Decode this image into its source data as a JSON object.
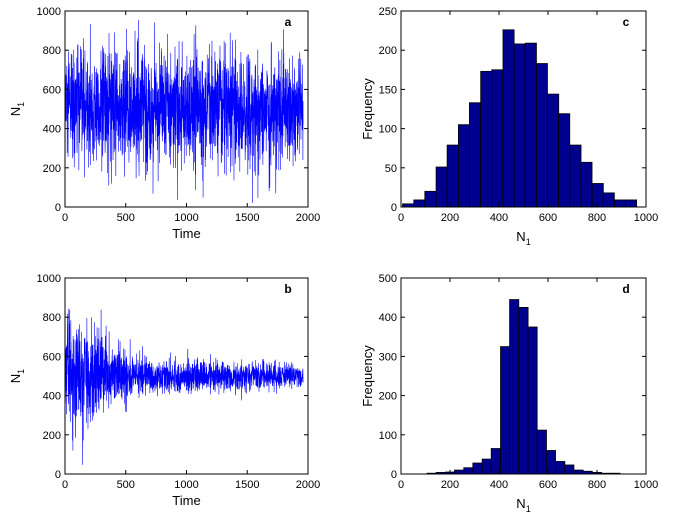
{
  "chart_data": [
    {
      "id": "a",
      "type": "line",
      "panel_label": "a",
      "xlabel": "Time",
      "ylabel": "N",
      "ylabel_sub": "1",
      "xlim": [
        0,
        2000
      ],
      "ylim": [
        0,
        1000
      ],
      "xticks": [
        0,
        500,
        1000,
        1500,
        2000
      ],
      "yticks": [
        0,
        200,
        400,
        600,
        800,
        1000
      ],
      "color": "#0000ff",
      "series": [
        {
          "x_range": [
            0,
            1960
          ],
          "mean": 500,
          "n_points": 1960,
          "amplitude_profile": [
            {
              "t": 0,
              "std": 150
            },
            {
              "t": 1960,
              "std": 150
            }
          ]
        }
      ]
    },
    {
      "id": "b",
      "type": "line",
      "panel_label": "b",
      "xlabel": "Time",
      "ylabel": "N",
      "ylabel_sub": "1",
      "xlim": [
        0,
        2000
      ],
      "ylim": [
        0,
        1000
      ],
      "xticks": [
        0,
        500,
        1000,
        1500,
        2000
      ],
      "yticks": [
        0,
        200,
        400,
        600,
        800,
        1000
      ],
      "color": "#0000ff",
      "series": [
        {
          "x_range": [
            0,
            1960
          ],
          "mean": 500,
          "n_points": 1960,
          "amplitude_profile": [
            {
              "t": 0,
              "std": 130
            },
            {
              "t": 150,
              "std": 140
            },
            {
              "t": 400,
              "std": 75
            },
            {
              "t": 700,
              "std": 45
            },
            {
              "t": 1960,
              "std": 30
            }
          ]
        }
      ]
    },
    {
      "id": "c",
      "type": "bar",
      "panel_label": "c",
      "xlabel": "N",
      "xlabel_sub": "1",
      "ylabel": "Frequency",
      "xlim": [
        0,
        1000
      ],
      "ylim": [
        0,
        250
      ],
      "xticks": [
        0,
        200,
        400,
        600,
        800,
        1000
      ],
      "yticks": [
        0,
        50,
        100,
        150,
        200,
        250
      ],
      "bar_color": "#00008f",
      "bin_width": 45.5,
      "bin_centers": [
        29,
        75,
        120,
        166,
        211,
        257,
        302,
        348,
        393,
        439,
        484,
        530,
        575,
        621,
        666,
        712,
        757,
        803,
        848,
        894,
        939
      ],
      "values": [
        4,
        9,
        20,
        51,
        79,
        105,
        133,
        173,
        175,
        226,
        208,
        209,
        183,
        144,
        119,
        79,
        57,
        30,
        18,
        9,
        9
      ]
    },
    {
      "id": "d",
      "type": "bar",
      "panel_label": "d",
      "xlabel": "N",
      "xlabel_sub": "1",
      "ylabel": "Frequency",
      "xlim": [
        0,
        1000
      ],
      "ylim": [
        0,
        500
      ],
      "xticks": [
        0,
        200,
        400,
        600,
        800,
        1000
      ],
      "yticks": [
        0,
        100,
        200,
        300,
        400,
        500
      ],
      "bar_color": "#00008f",
      "bin_width": 37.5,
      "bin_centers": [
        125,
        162,
        200,
        237,
        275,
        312,
        350,
        387,
        425,
        462,
        500,
        537,
        575,
        612,
        650,
        687,
        725,
        762,
        800,
        837,
        875
      ],
      "values": [
        2,
        4,
        5,
        10,
        16,
        28,
        38,
        65,
        325,
        445,
        425,
        375,
        112,
        60,
        32,
        23,
        10,
        7,
        4,
        2,
        2
      ]
    }
  ]
}
